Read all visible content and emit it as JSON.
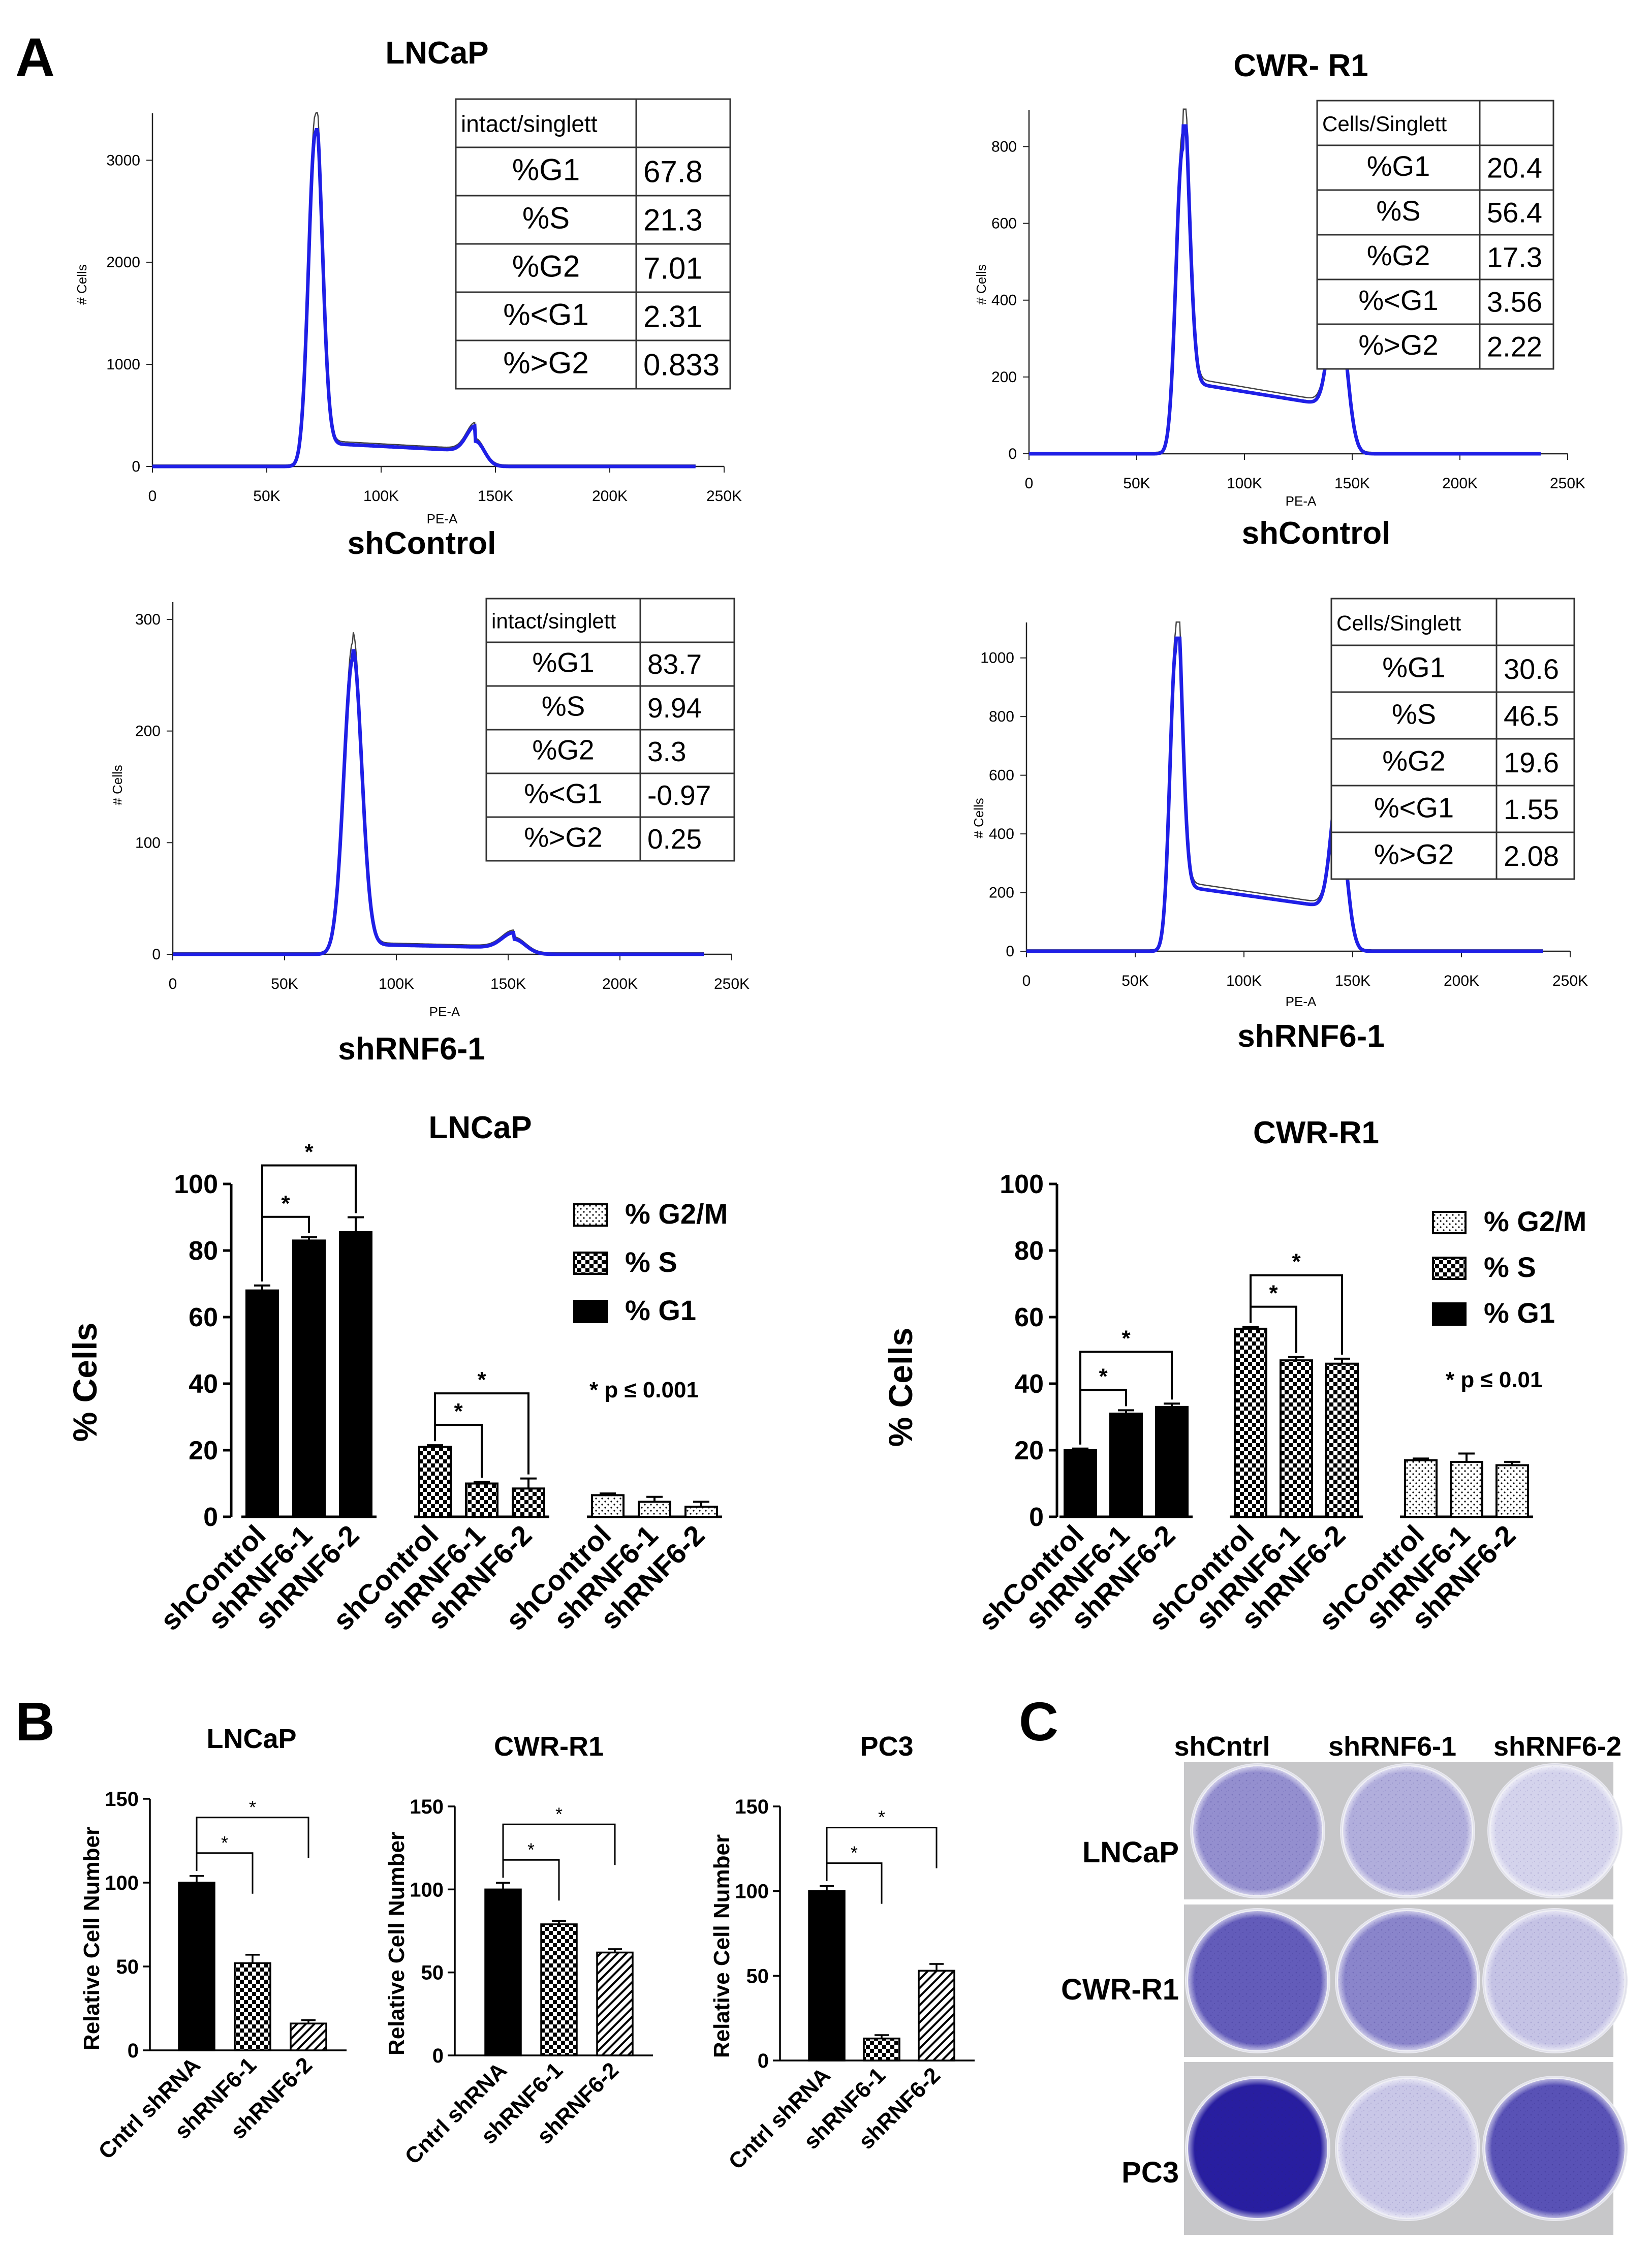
{
  "panel_labels": {
    "a": "A",
    "b": "B",
    "c": "C"
  },
  "colors": {
    "trace_blue": "#1f1fe6",
    "trace_gray": "#444444",
    "bar_black": "#000000",
    "plate_purple": "#5a55a8"
  },
  "flow": [
    {
      "cell_line": "LNCaP",
      "condition": "shControl",
      "x_axis_label": "PE-A",
      "y_axis_label": "# Cells",
      "x_ticks": [
        "0",
        "50K",
        "100K",
        "150K",
        "200K",
        "250K"
      ],
      "y_ticks": [
        "0",
        "1000",
        "2000",
        "3000"
      ],
      "y_max": 3400,
      "table_header": "intact/singlett",
      "rows": [
        {
          "label": "%G1",
          "value": "67.8"
        },
        {
          "label": "%S",
          "value": "21.3"
        },
        {
          "label": "%G2",
          "value": "7.01"
        },
        {
          "label": "%<G1",
          "value": "2.31"
        },
        {
          "label": "%>G2",
          "value": "0.833"
        }
      ]
    },
    {
      "cell_line": "CWR- R1",
      "condition": "shControl",
      "x_axis_label": "PE-A",
      "y_axis_label": "# Cells",
      "x_ticks": [
        "0",
        "50K",
        "100K",
        "150K",
        "200K",
        "250K"
      ],
      "y_ticks": [
        "0",
        "200",
        "400",
        "600",
        "800"
      ],
      "y_max": 880,
      "table_header": "Cells/Singlett",
      "rows": [
        {
          "label": "%G1",
          "value": "20.4"
        },
        {
          "label": "%S",
          "value": "56.4"
        },
        {
          "label": "%G2",
          "value": "17.3"
        },
        {
          "label": "%<G1",
          "value": "3.56"
        },
        {
          "label": "%>G2",
          "value": "2.22"
        }
      ]
    },
    {
      "cell_line": "",
      "condition": "shRNF6-1",
      "x_axis_label": "PE-A",
      "y_axis_label": "# Cells",
      "x_ticks": [
        "0",
        "50K",
        "100K",
        "150K",
        "200K",
        "250K"
      ],
      "y_ticks": [
        "0",
        "100",
        "200",
        "300"
      ],
      "y_max": 310,
      "table_header": "intact/singlett",
      "rows": [
        {
          "label": "%G1",
          "value": "83.7"
        },
        {
          "label": "%S",
          "value": "9.94"
        },
        {
          "label": "%G2",
          "value": "3.3"
        },
        {
          "label": "%<G1",
          "value": "-0.97"
        },
        {
          "label": "%>G2",
          "value": "0.25"
        }
      ]
    },
    {
      "cell_line": "",
      "condition": "shRNF6-1",
      "x_axis_label": "PE-A",
      "y_axis_label": "# Cells",
      "x_ticks": [
        "0",
        "50K",
        "100K",
        "150K",
        "200K",
        "250K"
      ],
      "y_ticks": [
        "0",
        "200",
        "400",
        "600",
        "800",
        "1000"
      ],
      "y_max": 1100,
      "table_header": "Cells/Singlett",
      "rows": [
        {
          "label": "%G1",
          "value": "30.6"
        },
        {
          "label": "%S",
          "value": "46.5"
        },
        {
          "label": "%G2",
          "value": "19.6"
        },
        {
          "label": "%<G1",
          "value": "1.55"
        },
        {
          "label": "%>G2",
          "value": "2.08"
        }
      ]
    }
  ],
  "chart_data": [
    {
      "type": "bar",
      "title": "LNCaP",
      "ylabel": "% Cells",
      "ylim": [
        0,
        100
      ],
      "y_ticks": [
        "0",
        "20",
        "40",
        "60",
        "80",
        "100"
      ],
      "categories": [
        "shControl",
        "shRNF6-1",
        "shRNF6-2"
      ],
      "series": [
        {
          "name": "% G1",
          "pattern": "solid",
          "values": [
            68,
            83,
            85.5
          ],
          "errors": [
            1.5,
            1,
            4.5
          ]
        },
        {
          "name": "% S",
          "pattern": "checker",
          "values": [
            21,
            10,
            8.5
          ],
          "errors": [
            0.5,
            0.5,
            3
          ]
        },
        {
          "name": "% G2/M",
          "pattern": "dots",
          "values": [
            6.5,
            4.5,
            3
          ],
          "errors": [
            0.5,
            1.5,
            1.5
          ]
        }
      ],
      "legend": [
        "% G2/M",
        "% S",
        "% G1"
      ],
      "annotation": "* p ≤ 0.001",
      "significance": [
        {
          "series": 0,
          "from": 0,
          "to": 1,
          "label": "*"
        },
        {
          "series": 0,
          "from": 0,
          "to": 2,
          "label": "*"
        },
        {
          "series": 1,
          "from": 0,
          "to": 1,
          "label": "*"
        },
        {
          "series": 1,
          "from": 0,
          "to": 2,
          "label": "*"
        }
      ]
    },
    {
      "type": "bar",
      "title": "CWR-R1",
      "ylabel": "% Cells",
      "ylim": [
        0,
        100
      ],
      "y_ticks": [
        "0",
        "20",
        "40",
        "60",
        "80",
        "100"
      ],
      "categories": [
        "shControl",
        "shRNF6-1",
        "shRNF6-2"
      ],
      "series": [
        {
          "name": "% G1",
          "pattern": "solid",
          "values": [
            20,
            31,
            33
          ],
          "errors": [
            0.5,
            1,
            1
          ]
        },
        {
          "name": "% S",
          "pattern": "checker",
          "values": [
            56.5,
            47,
            46
          ],
          "errors": [
            0.5,
            1,
            1.5
          ]
        },
        {
          "name": "% G2/M",
          "pattern": "dots",
          "values": [
            17,
            16.5,
            15.5
          ],
          "errors": [
            0.5,
            2.5,
            1
          ]
        }
      ],
      "legend": [
        "% G2/M",
        "% S",
        "% G1"
      ],
      "annotation": "* p ≤ 0.01",
      "significance": [
        {
          "series": 0,
          "from": 0,
          "to": 1,
          "label": "*"
        },
        {
          "series": 0,
          "from": 0,
          "to": 2,
          "label": "*"
        },
        {
          "series": 1,
          "from": 0,
          "to": 1,
          "label": "*"
        },
        {
          "series": 1,
          "from": 0,
          "to": 2,
          "label": "*"
        }
      ]
    },
    {
      "type": "bar",
      "title": "LNCaP",
      "ylabel": "Relative Cell Number",
      "ylim": [
        0,
        150
      ],
      "y_ticks": [
        "0",
        "50",
        "100",
        "150"
      ],
      "categories": [
        "Cntrl shRNA",
        "shRNF6-1",
        "shRNF6-2"
      ],
      "patterns": [
        "solid",
        "checker",
        "hatch"
      ],
      "values": [
        100,
        52,
        16
      ],
      "errors": [
        4,
        5,
        2
      ],
      "significance": [
        {
          "from": 0,
          "to": 1,
          "label": "*"
        },
        {
          "from": 0,
          "to": 2,
          "label": "*"
        }
      ]
    },
    {
      "type": "bar",
      "title": "CWR-R1",
      "ylabel": "Relative Cell Number",
      "ylim": [
        0,
        150
      ],
      "y_ticks": [
        "0",
        "50",
        "100",
        "150"
      ],
      "categories": [
        "Cntrl shRNA",
        "shRNF6-1",
        "shRNF6-2"
      ],
      "patterns": [
        "solid",
        "checker",
        "hatch"
      ],
      "values": [
        100,
        79,
        62
      ],
      "errors": [
        4,
        2,
        2
      ],
      "significance": [
        {
          "from": 0,
          "to": 1,
          "label": "*"
        },
        {
          "from": 0,
          "to": 2,
          "label": "*"
        }
      ]
    },
    {
      "type": "bar",
      "title": "PC3",
      "ylabel": "Relative Cell Number",
      "ylim": [
        0,
        150
      ],
      "y_ticks": [
        "0",
        "50",
        "100",
        "150"
      ],
      "categories": [
        "Cntrl shRNA",
        "shRNF6-1",
        "shRNF6-2"
      ],
      "patterns": [
        "solid",
        "checker",
        "hatch"
      ],
      "values": [
        100,
        13,
        53
      ],
      "errors": [
        3,
        2,
        4
      ],
      "significance": [
        {
          "from": 0,
          "to": 1,
          "label": "*"
        },
        {
          "from": 0,
          "to": 2,
          "label": "*"
        }
      ]
    }
  ],
  "colony_assay": {
    "columns": [
      "shCntrl",
      "shRNF6-1",
      "shRNF6-2"
    ],
    "rows": [
      {
        "label": "LNCaP",
        "stain": [
          0.45,
          0.3,
          0.12
        ]
      },
      {
        "label": "CWR-R1",
        "stain": [
          0.7,
          0.5,
          0.2
        ]
      },
      {
        "label": "PC3",
        "stain": [
          1.0,
          0.18,
          0.75
        ]
      }
    ]
  }
}
